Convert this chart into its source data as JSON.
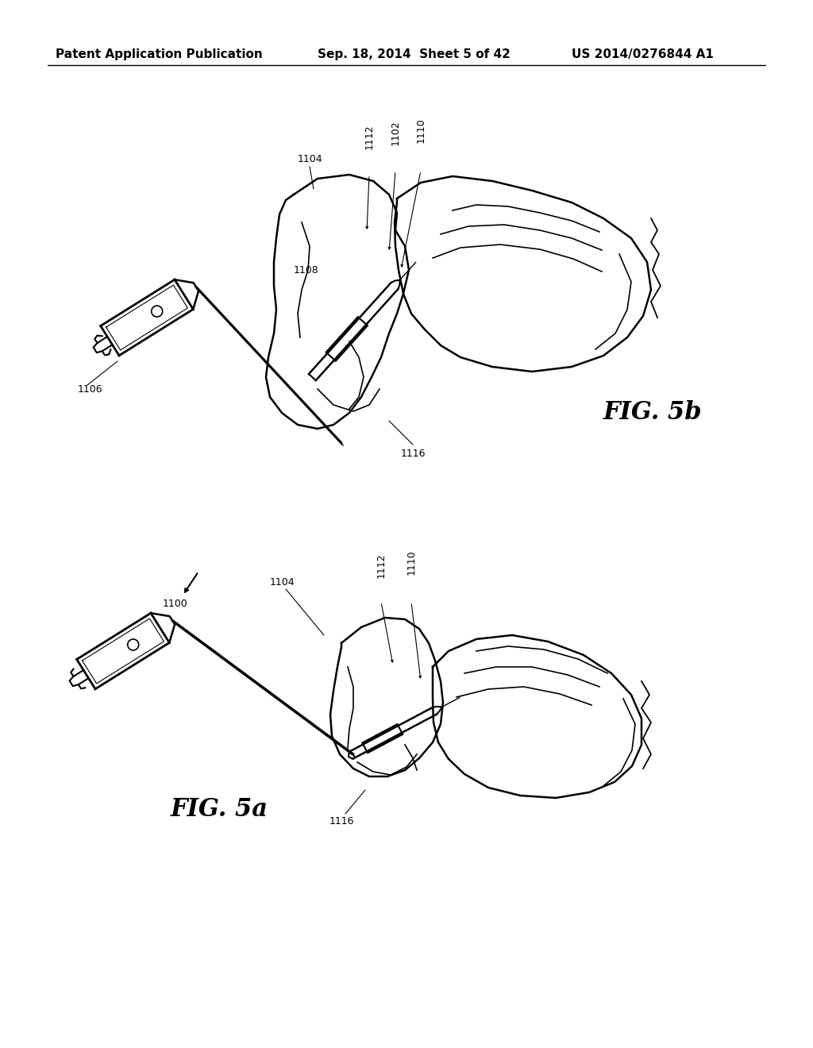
{
  "background_color": "#ffffff",
  "header_left": "Patent Application Publication",
  "header_center": "Sep. 18, 2014  Sheet 5 of 42",
  "header_right": "US 2014/0276844 A1",
  "header_fontsize": 11,
  "fig5b_label": "FIG. 5b",
  "fig5a_label": "FIG. 5a",
  "line_color": "#000000",
  "text_color": "#000000"
}
